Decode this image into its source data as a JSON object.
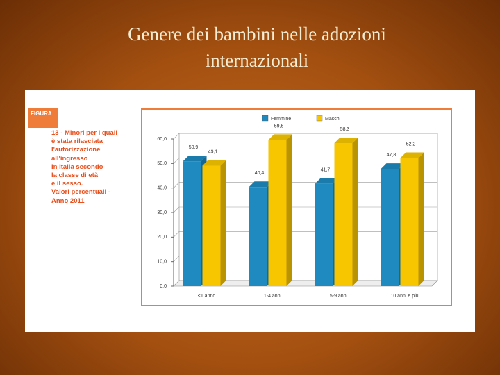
{
  "slide": {
    "title": "Genere dei bambini nelle adozioni internazionali"
  },
  "chart_data": {
    "type": "bar",
    "figure_label": "FIGURA",
    "caption_lines": [
      "13 - Minori per i quali",
      "è stata rilasciata",
      "l'autorizzazione",
      "all'ingresso",
      "in Italia secondo",
      "la classe di età",
      "e il sesso.",
      "Valori percentuali -",
      "Anno 2011"
    ],
    "categories": [
      "<1 anno",
      "1-4 anni",
      "5-9 anni",
      "10 anni e più"
    ],
    "series": [
      {
        "name": "Femmine",
        "color": "#1f8ac0",
        "values": [
          50.9,
          40.4,
          41.7,
          47.8
        ],
        "value_labels": [
          "50,9",
          "40,4",
          "41,7",
          "47,8"
        ]
      },
      {
        "name": "Maschi",
        "color": "#f7c600",
        "values": [
          49.1,
          59.6,
          58.3,
          52.2
        ],
        "value_labels": [
          "49,1",
          "59,6",
          "58,3",
          "52,2"
        ]
      }
    ],
    "ylim": [
      0,
      60
    ],
    "yticks": [
      {
        "value": 0,
        "label": "0,0"
      },
      {
        "value": 10,
        "label": "10,0"
      },
      {
        "value": 20,
        "label": "20,0"
      },
      {
        "value": 30,
        "label": "30,0"
      },
      {
        "value": 40,
        "label": "40,0"
      },
      {
        "value": 50,
        "label": "50,0"
      },
      {
        "value": 60,
        "label": "60,0"
      }
    ],
    "grid": true
  }
}
